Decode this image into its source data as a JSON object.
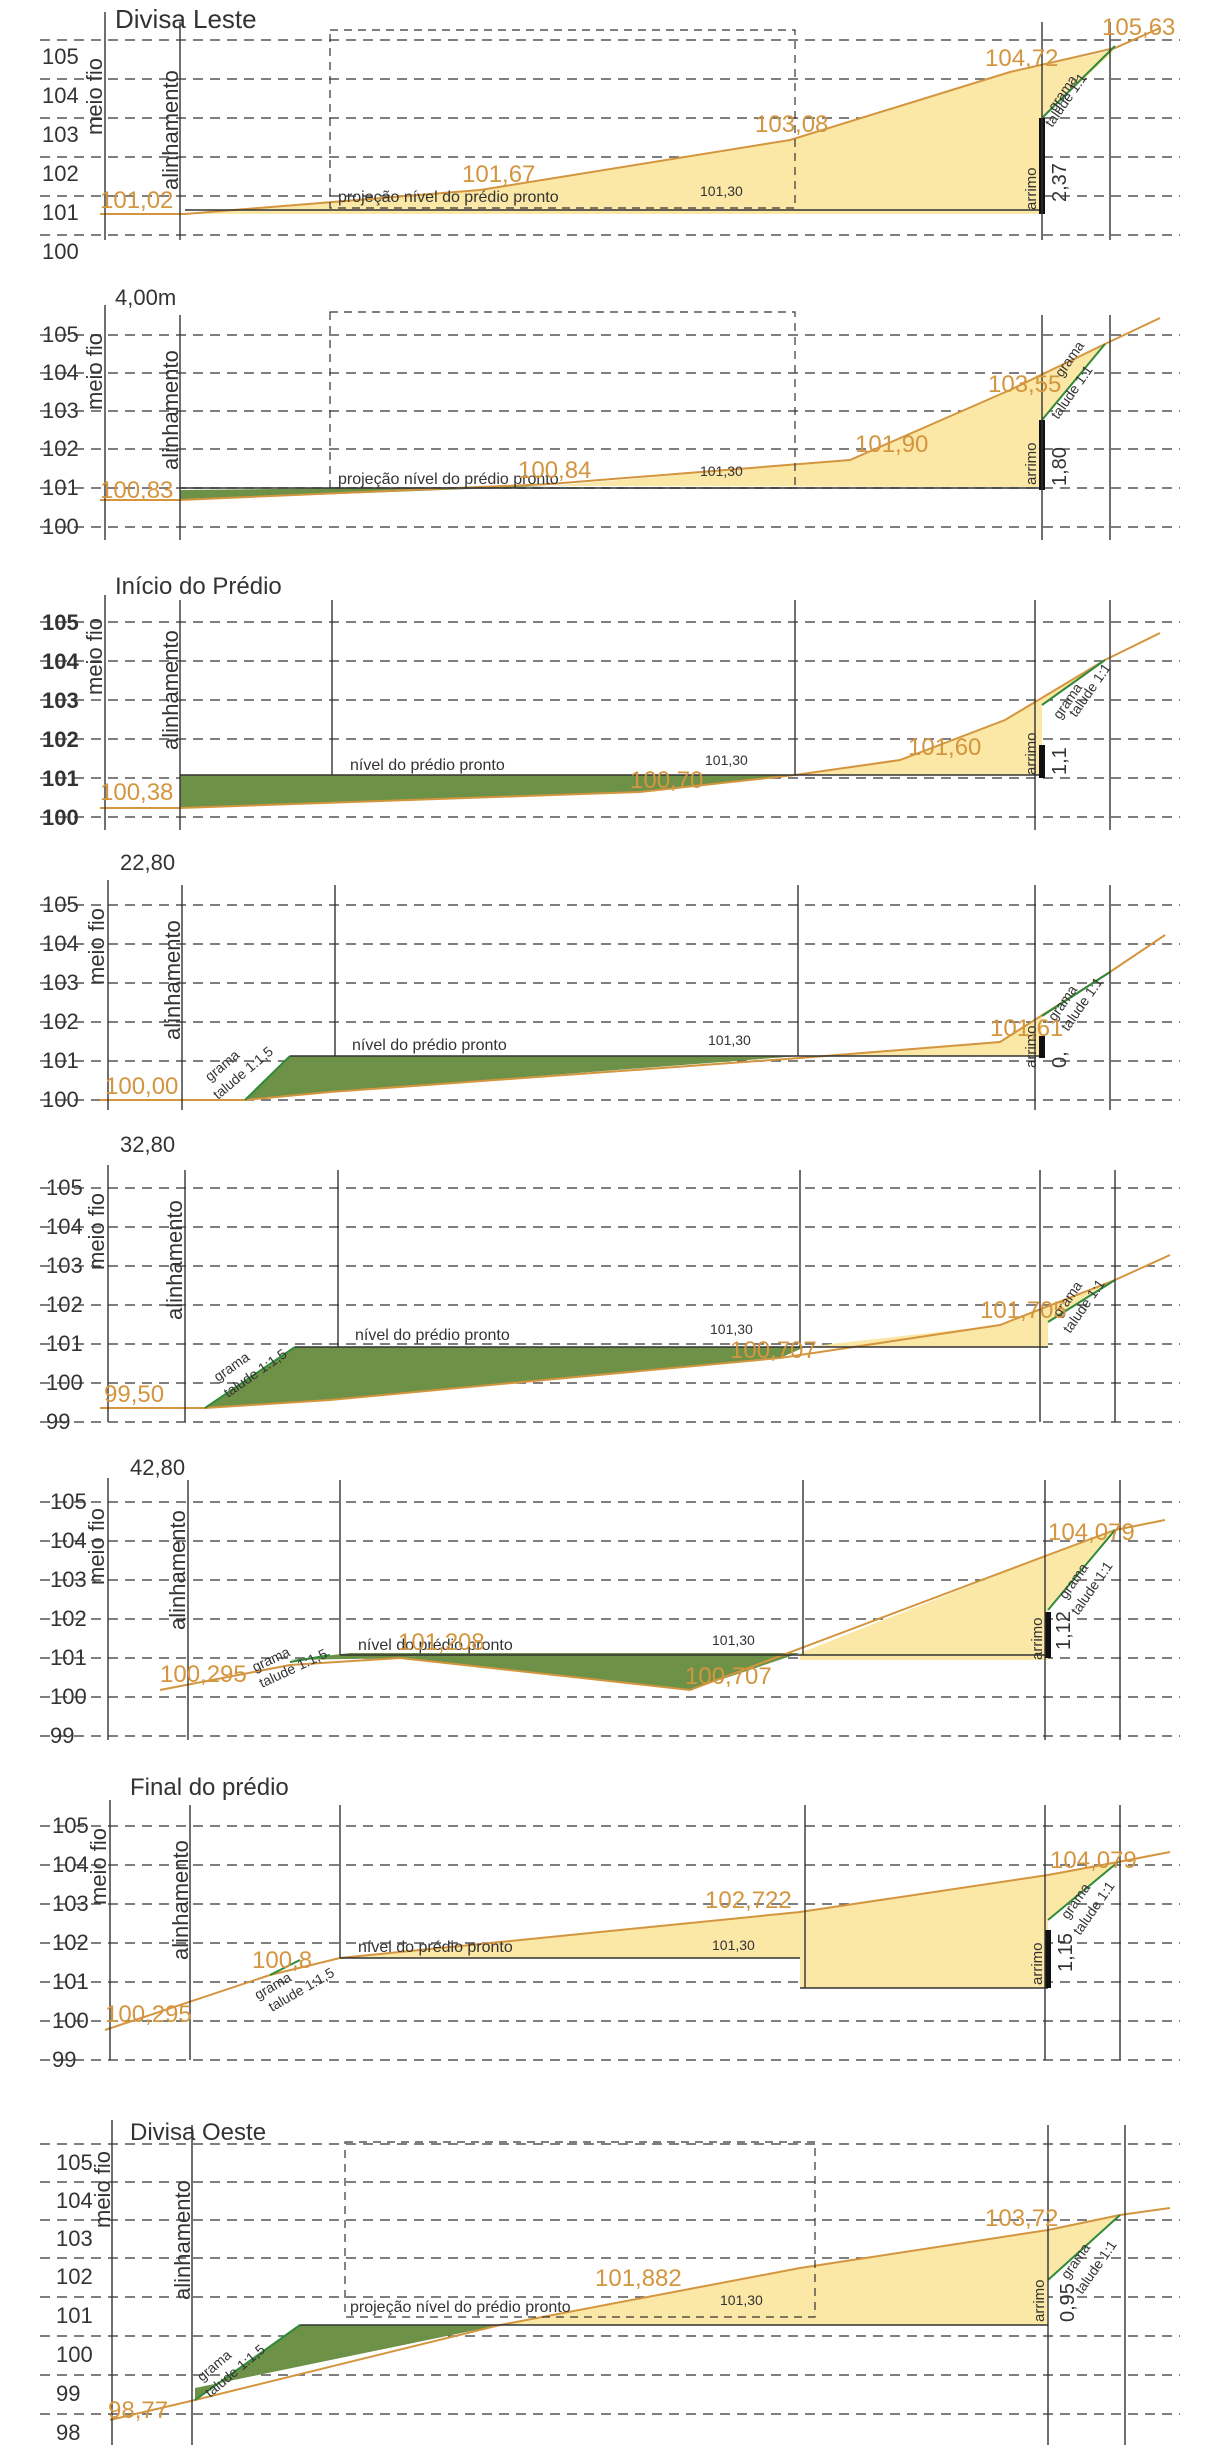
{
  "colors": {
    "fill_cut": "#fbe7a6",
    "fill_fill": "#6e9148",
    "terrain_line": "#d4953f",
    "value_text": "#d4953f",
    "slope_green": "#2f8a3a",
    "line_dark": "#333333",
    "grid": "#555555"
  },
  "labels": {
    "meio_fio": "meio fio",
    "alinhamento": "alinhamento",
    "arrimo": "arrimo",
    "grama": "grama",
    "nivel": "nível do prédio pronto",
    "projecao": "projeção nível do prédio pronto"
  },
  "sections": [
    {
      "title": "Divisa Leste",
      "levels": [
        "105",
        "104",
        "103",
        "102",
        "101",
        "100"
      ],
      "terrain_values": [
        "101,02",
        "101,67",
        "103,08",
        "104,72",
        "105,63"
      ],
      "building_level": "101,30",
      "building_label": "projeção nível do prédio pronto",
      "wall_height": "2,37",
      "slope_label": "talude 1:1",
      "right_slope": "talude 1:1",
      "left_slope": ""
    },
    {
      "title": "4,00m",
      "levels": [
        "105",
        "104",
        "103",
        "102",
        "101",
        "100"
      ],
      "terrain_values": [
        "100,83",
        "100,84",
        "101,90",
        "103,55"
      ],
      "building_level": "101,30",
      "building_label": "projeção nível do prédio pronto",
      "wall_height": "1,80",
      "right_slope": "talude 1:1",
      "left_slope": ""
    },
    {
      "title": "Início do Prédio",
      "levels": [
        "105",
        "104",
        "103",
        "102",
        "101",
        "100"
      ],
      "terrain_values": [
        "100,38",
        "100,70",
        "101,60"
      ],
      "building_level": "101,30",
      "building_label": "nível do prédio pronto",
      "wall_height": "1,1",
      "right_slope": "talude 1:1",
      "left_slope": ""
    },
    {
      "title": "22,80",
      "levels": [
        "105",
        "104",
        "103",
        "102",
        "101",
        "100"
      ],
      "terrain_values": [
        "100,00",
        "101,61"
      ],
      "building_level": "101,30",
      "building_label": "nível do prédio pronto",
      "wall_height": "0,",
      "right_slope": "talude 1:1",
      "left_slope": "talude 1:1,5"
    },
    {
      "title": "32,80",
      "levels": [
        "105",
        "104",
        "103",
        "102",
        "101",
        "100",
        "99"
      ],
      "terrain_values": [
        "99,50",
        "100,707",
        "101,705"
      ],
      "building_level": "101,30",
      "building_label": "nível do prédio pronto",
      "wall_height": "",
      "right_slope": "talude 1:1",
      "left_slope": "talude 1:1,5"
    },
    {
      "title": "42,80",
      "levels": [
        "105",
        "104",
        "103",
        "102",
        "101",
        "100",
        "99"
      ],
      "terrain_values": [
        "100,295",
        "101,208",
        "100,707",
        "104,079"
      ],
      "building_level": "101,30",
      "building_label": "nível do prédio pronto",
      "wall_height": "1,12",
      "right_slope": "talude 1:1",
      "left_slope": "talude 1:1,5"
    },
    {
      "title": "Final do prédio",
      "levels": [
        "105",
        "104",
        "103",
        "102",
        "101",
        "100",
        "99"
      ],
      "terrain_values": [
        "100,295",
        "100,8",
        "102,722",
        "104,079"
      ],
      "building_level": "101,30",
      "building_label": "nível do prédio pronto",
      "wall_height": "1,15",
      "right_slope": "talude 1:1",
      "left_slope": "talude 1:1,5"
    },
    {
      "title": "Divisa Oeste",
      "levels": [
        "105",
        "104",
        "103",
        "102",
        "101",
        "100",
        "99",
        "98"
      ],
      "terrain_values": [
        "98,77",
        "101,882",
        "103,72"
      ],
      "building_level": "101,30",
      "building_label": "projeção nível do prédio pronto",
      "wall_height": "0,95",
      "right_slope": "talude 1:1",
      "left_slope": "talude 1:1,5"
    }
  ]
}
